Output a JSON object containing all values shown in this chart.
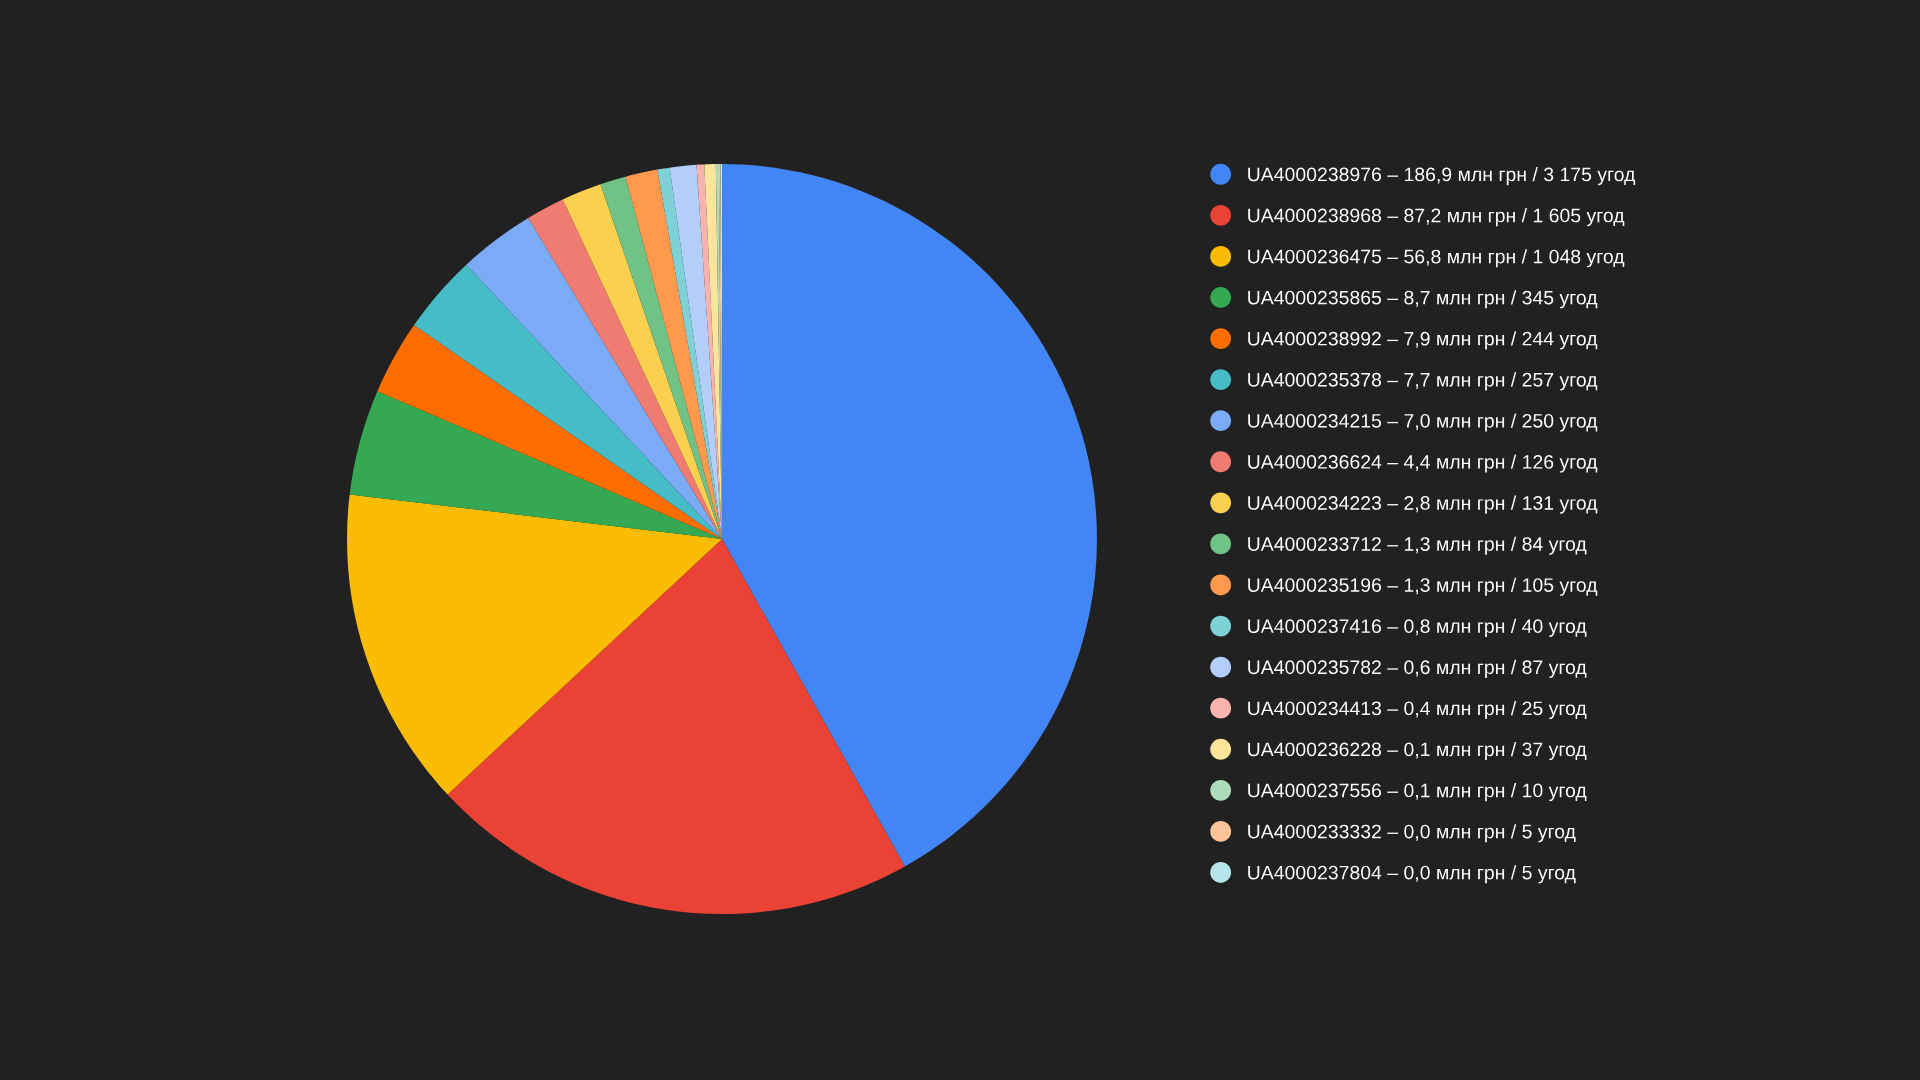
{
  "chart_data": {
    "type": "pie",
    "categories": [
      "UA4000238976 – 186,9 млн грн / 3 175 угод",
      "UA4000238968 – 87,2 млн грн / 1 605 угод",
      "UA4000236475 – 56,8 млн грн / 1 048 угод",
      "UA4000235865 – 8,7 млн грн / 345 угод",
      "UA4000238992 – 7,9 млн грн / 244 угод",
      "UA4000235378 – 7,7 млн грн / 257 угод",
      "UA4000234215 – 7,0 млн грн / 250 угод",
      "UA4000236624 – 4,4 млн грн / 126 угод",
      "UA4000234223 – 2,8 млн грн / 131 угод",
      "UA4000233712 – 1,3 млн грн / 84 угод",
      "UA4000235196 – 1,3 млн грн / 105 угод",
      "UA4000237416 – 0,8 млн грн / 40 угод",
      "UA4000235782 – 0,6 млн грн / 87 угод",
      "UA4000234413 – 0,4 млн грн / 25 угод",
      "UA4000236228 – 0,1 млн грн / 37 угод",
      "UA4000237556 – 0,1 млн грн / 10 угод",
      "UA4000233332 – 0,0 млн грн / 5 угод",
      "UA4000237804 – 0,0 млн грн / 5 угод"
    ],
    "values": [
      3175,
      1605,
      1048,
      345,
      244,
      257,
      250,
      126,
      131,
      84,
      105,
      40,
      87,
      25,
      37,
      10,
      5,
      5
    ],
    "colors": [
      "#4285f4",
      "#ea4335",
      "#fbbc04",
      "#34a853",
      "#ff6d01",
      "#46bdc6",
      "#7baaf7",
      "#f07b72",
      "#fcd04f",
      "#71c287",
      "#ff994d",
      "#7ed1d7",
      "#b3cefb",
      "#f7b4ae",
      "#fde49b",
      "#aedcba",
      "#ffc599",
      "#b5e5e8"
    ],
    "legend": "right"
  }
}
